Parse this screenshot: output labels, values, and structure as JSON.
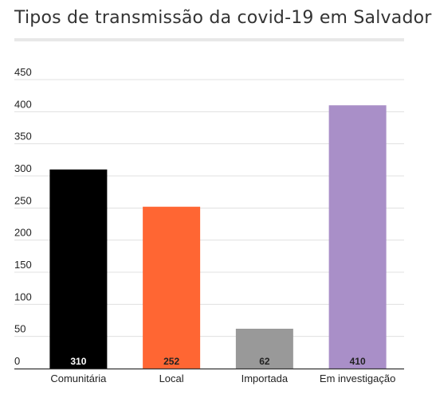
{
  "chart_data": {
    "type": "bar",
    "title": "Tipos de transmissão da covid-19 em Salvador",
    "categories": [
      "Comunitária",
      "Local",
      "Importada",
      "Em investigação"
    ],
    "values": [
      310,
      252,
      62,
      410
    ],
    "data_labels": [
      "310",
      "252",
      "62",
      "410"
    ],
    "colors": [
      "#000000",
      "#ff6633",
      "#999999",
      "#a98fc8"
    ],
    "label_colors": [
      "#ffffff",
      "#222222",
      "#222222",
      "#222222"
    ],
    "yticks": [
      "0",
      "50",
      "100",
      "150",
      "200",
      "250",
      "300",
      "350",
      "400",
      "450"
    ],
    "ylim": [
      0,
      450
    ],
    "grid": true,
    "legend": "none"
  }
}
